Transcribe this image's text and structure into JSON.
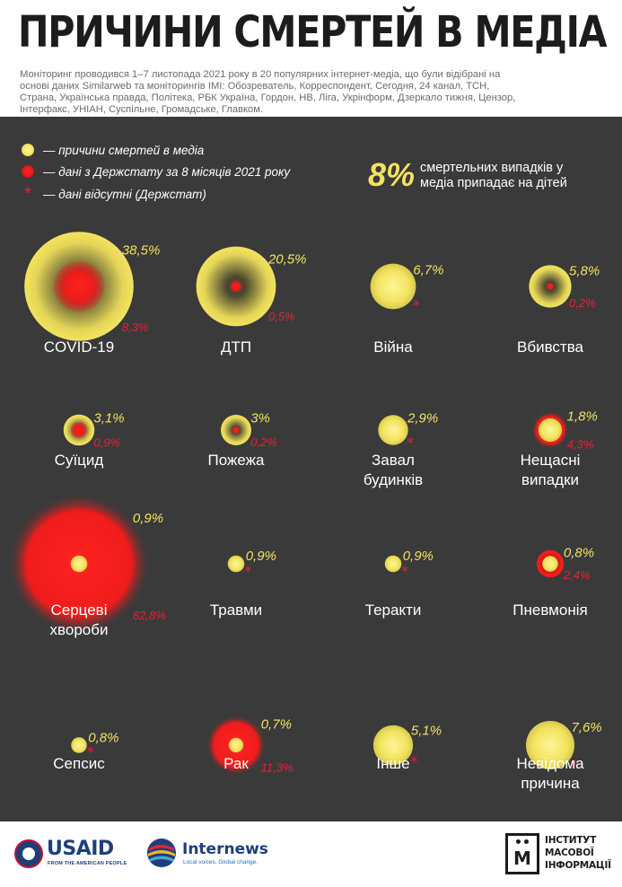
{
  "title": "ПРИЧИНИ СМЕРТЕЙ В МЕДІА",
  "subtitle": "Моніторинг проводився 1–7 листопада  2021 року в 20 популярних інтернет-медіа, що були відібрані на основі даних Similarweb та моніторингів IMI: Обозреватель, Корреспондент, Сегодня, 24 канал, ТСН, Страна, Українська правда, Політека, РБК Україна, Гордон, НВ, Ліга,  Укрінформ, Дзеркало тижня, Цензор, Інтерфакс, УНІАН, Суспільне, Громадське, Главком.",
  "legend": [
    {
      "symbol": "yellow-dot",
      "label": "— причини смертей в медіа"
    },
    {
      "symbol": "red-dot",
      "label": "— дані з Держстату за 8 місяців 2021 року"
    },
    {
      "symbol": "asterisk",
      "glyph": "*",
      "label": "— дані відсутні (Держстат)"
    }
  ],
  "highlight": {
    "value": "8%",
    "text": "смертельних випадків у медіа припадає на дітей"
  },
  "colors": {
    "media": "#f2e35e",
    "stat": "#e8203a",
    "panel": "#3a3a3a",
    "title": "#1c1c1c"
  },
  "chart_data": {
    "type": "bubble",
    "units": "%",
    "series": [
      {
        "name": "причини смертей в медіа",
        "color": "#f2e35e"
      },
      {
        "name": "дані з Держстату за 8 місяців 2021 року",
        "color": "#e8203a"
      }
    ],
    "categories": [
      {
        "label": [
          "COVID-19"
        ],
        "media": 38.5,
        "media_text": "38,5%",
        "stat": 8.3,
        "stat_text": "8,3%"
      },
      {
        "label": [
          "ДТП"
        ],
        "media": 20.5,
        "media_text": "20,5%",
        "stat": 0.5,
        "stat_text": "0,5%"
      },
      {
        "label": [
          "Війна"
        ],
        "media": 6.7,
        "media_text": "6,7%",
        "stat": null,
        "stat_text": null
      },
      {
        "label": [
          "Вбивства"
        ],
        "media": 5.8,
        "media_text": "5,8%",
        "stat": 0.2,
        "stat_text": "0,2%"
      },
      {
        "label": [
          "Суїцид"
        ],
        "media": 3.1,
        "media_text": "3,1%",
        "stat": 0.9,
        "stat_text": "0,9%"
      },
      {
        "label": [
          "Пожежа"
        ],
        "media": 3,
        "media_text": "3%",
        "stat": 0.2,
        "stat_text": "0,2%"
      },
      {
        "label": [
          "Завал",
          "будинків"
        ],
        "media": 2.9,
        "media_text": "2,9%",
        "stat": null,
        "stat_text": null
      },
      {
        "label": [
          "Нещасні",
          "випадки"
        ],
        "media": 1.8,
        "media_text": "1,8%",
        "stat": 4.3,
        "stat_text": "4,3%"
      },
      {
        "label": [
          "Серцеві",
          "хвороби"
        ],
        "media": 0.9,
        "media_text": "0,9%",
        "stat": 62.8,
        "stat_text": "62,8%"
      },
      {
        "label": [
          "Травми"
        ],
        "media": 0.9,
        "media_text": "0,9%",
        "stat": null,
        "stat_text": null
      },
      {
        "label": [
          "Теракти"
        ],
        "media": 0.9,
        "media_text": "0,9%",
        "stat": null,
        "stat_text": null
      },
      {
        "label": [
          "Пневмонія"
        ],
        "media": 0.8,
        "media_text": "0,8%",
        "stat": 2.4,
        "stat_text": "2,4%"
      },
      {
        "label": [
          "Сепсис"
        ],
        "media": 0.8,
        "media_text": "0,8%",
        "stat": null,
        "stat_text": null
      },
      {
        "label": [
          "Рак"
        ],
        "media": 0.7,
        "media_text": "0,7%",
        "stat": 11.3,
        "stat_text": "11,3%"
      },
      {
        "label": [
          "Інше"
        ],
        "media": 5.1,
        "media_text": "5,1%",
        "stat": null,
        "stat_text": null
      },
      {
        "label": [
          "Невідома",
          "причина"
        ],
        "media": 7.6,
        "media_text": "7,6%",
        "stat": null,
        "stat_text": null
      }
    ]
  },
  "footer": {
    "usaid": "USAID",
    "usaid_tagline": "FROM THE AMERICAN PEOPLE",
    "internews": "Internews",
    "internews_tagline": "Local voices. Global change.",
    "imi_letter": "М",
    "imi_lines": [
      "ІНСТИТУТ",
      "МАСОВОЇ",
      "ІНФОРМАЦІЇ"
    ]
  }
}
